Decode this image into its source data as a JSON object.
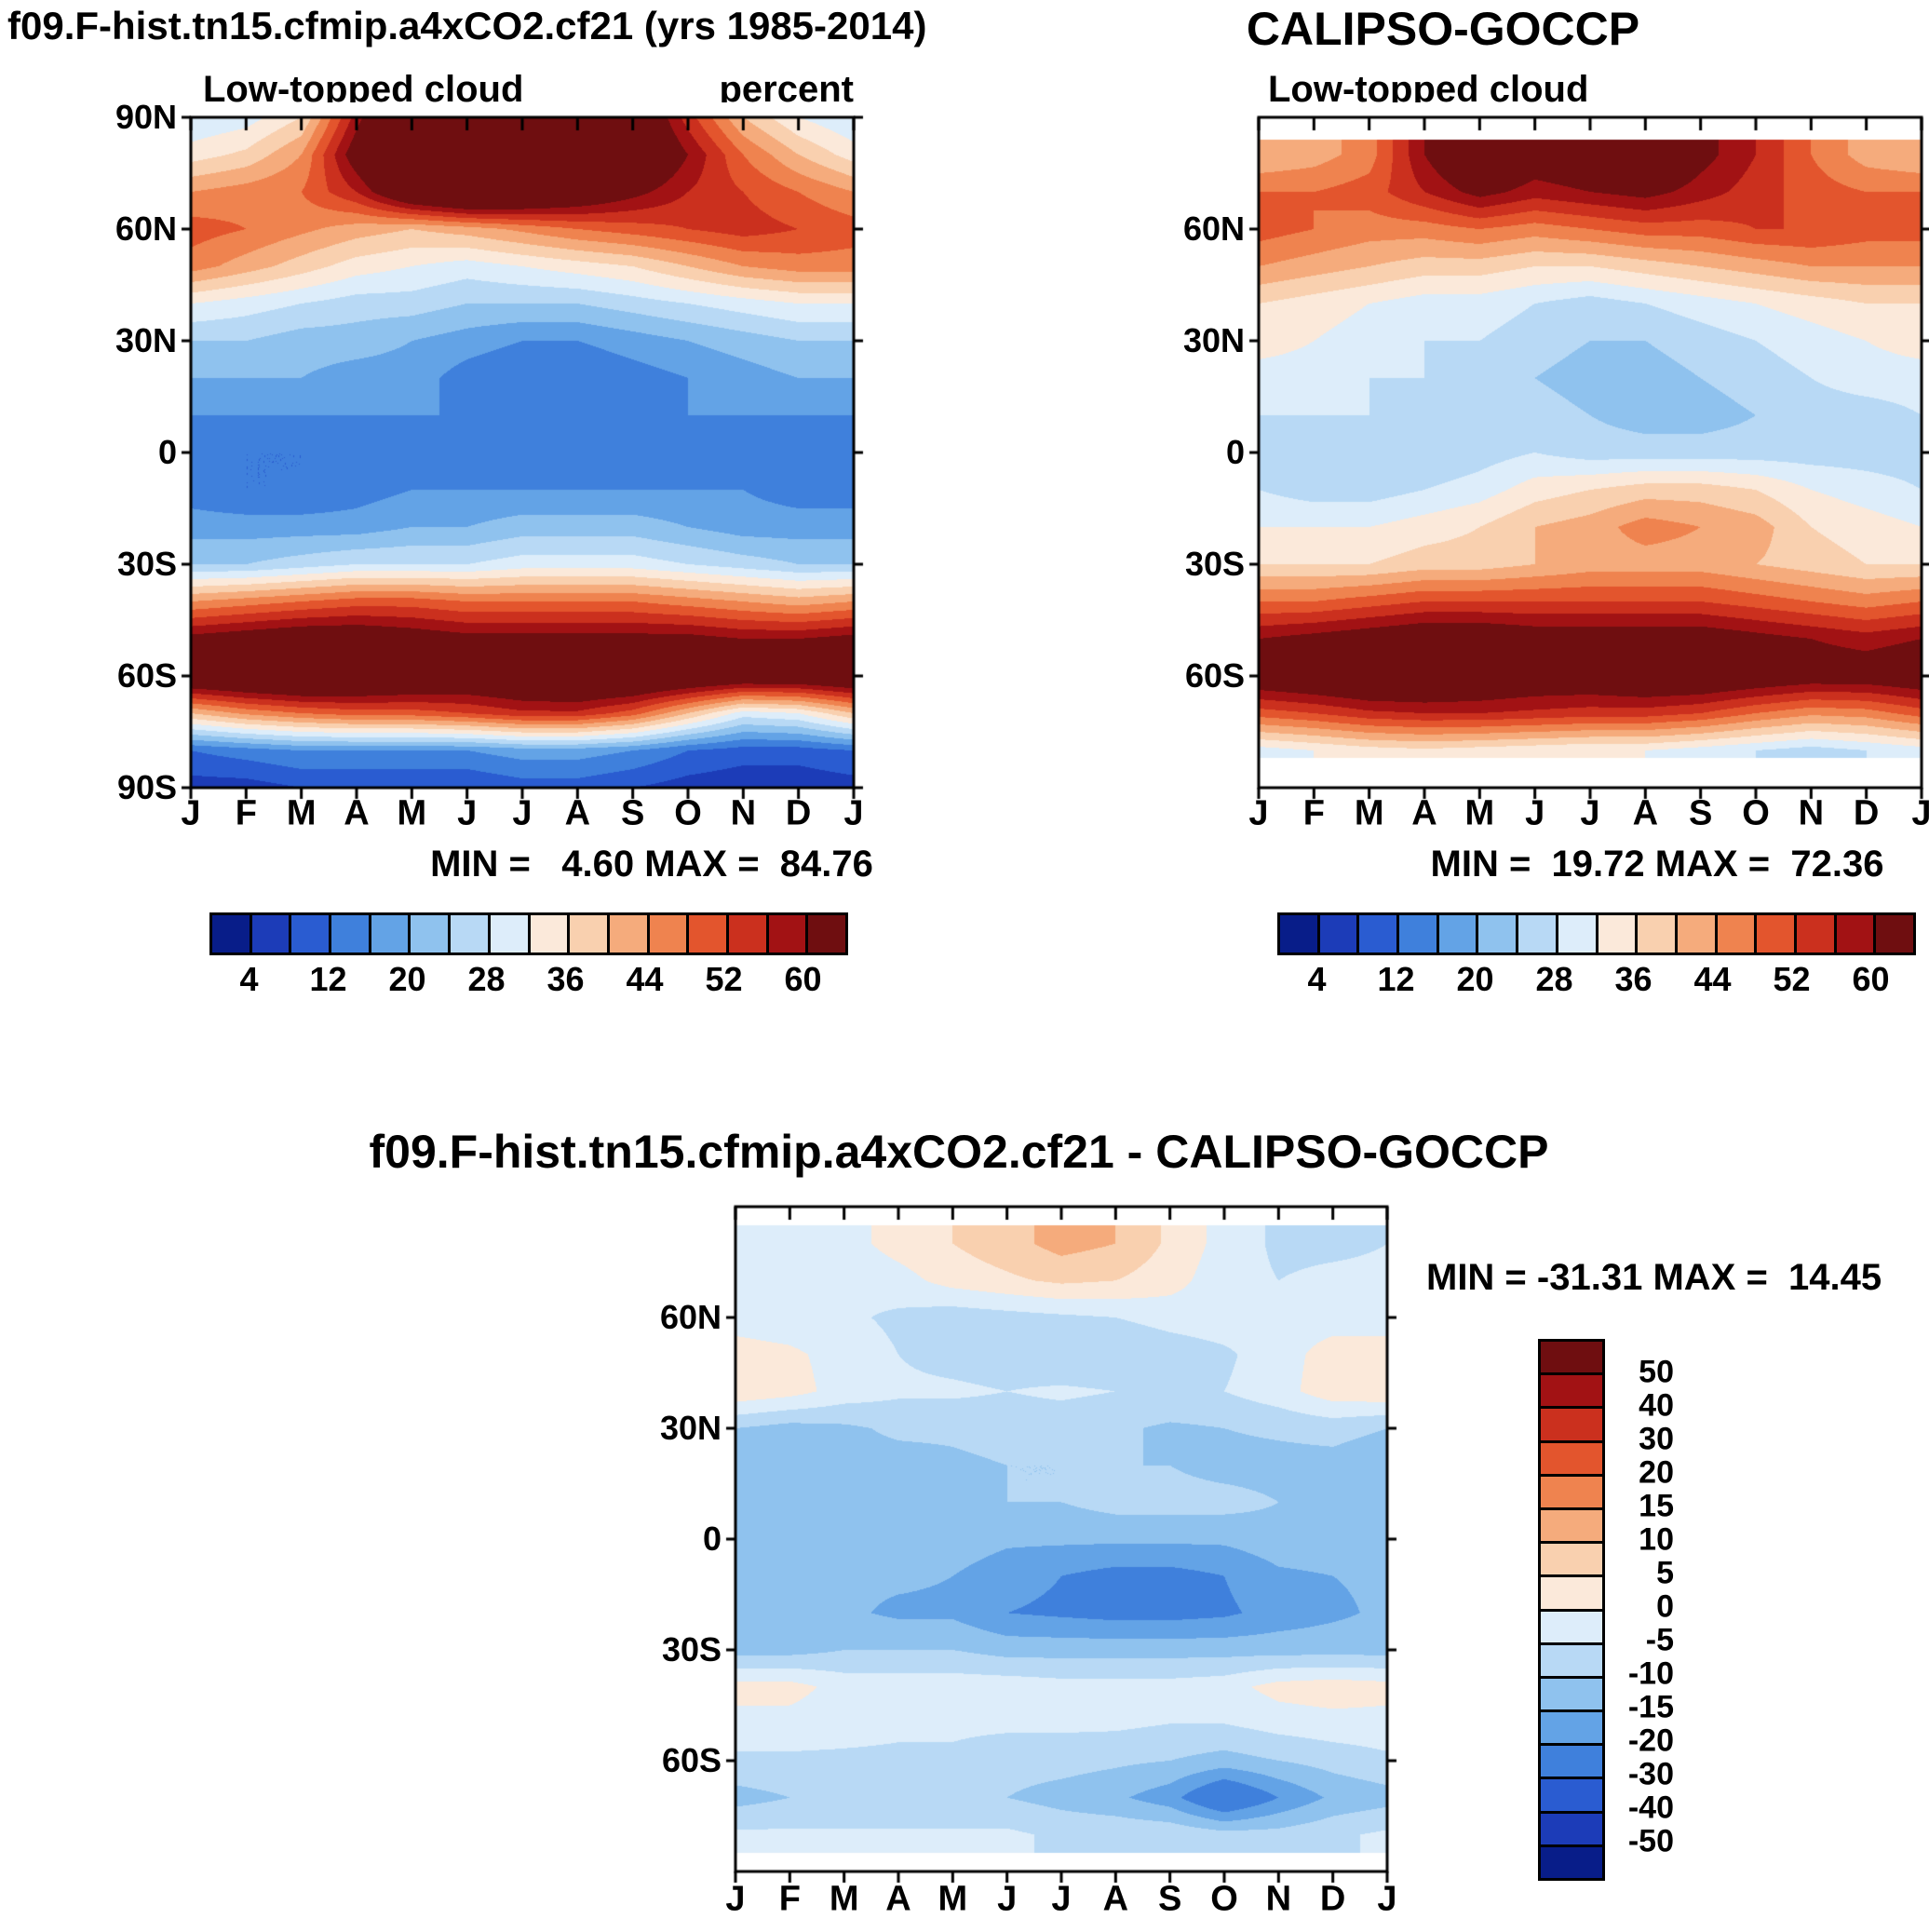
{
  "page": {
    "background": "#ffffff"
  },
  "palette": [
    "#081d89",
    "#1c3cb8",
    "#2a5cd1",
    "#3f80dc",
    "#63a3e6",
    "#8fc2ee",
    "#b8d9f5",
    "#ddedfa",
    "#fbe9da",
    "#f9d0af",
    "#f5ab7c",
    "#ef834f",
    "#e3552d",
    "#cb301e",
    "#a21214",
    "#6f0e10"
  ],
  "chart_data": [
    {
      "type": "heatmap",
      "id": "model",
      "title": "f09.F-hist.tn15.cfmip.a4xCO2.cf21 (yrs 1985-2014)",
      "subtitle_left": "Low-topped cloud",
      "subtitle_right": "percent",
      "stats": "MIN =   4.60 MAX =  84.76",
      "min": 4.6,
      "max": 84.76,
      "x_axis": "month",
      "y_axis": "latitude",
      "x_tick_labels": [
        "J",
        "F",
        "M",
        "A",
        "M",
        "J",
        "J",
        "A",
        "S",
        "O",
        "N",
        "D",
        "J"
      ],
      "y_tick_labels": [
        {
          "label": "90N",
          "lat": 90
        },
        {
          "label": "60N",
          "lat": 60
        },
        {
          "label": "30N",
          "lat": 30
        },
        {
          "label": "0",
          "lat": 0
        },
        {
          "label": "30S",
          "lat": -30
        },
        {
          "label": "60S",
          "lat": -60
        },
        {
          "label": "90S",
          "lat": -90
        }
      ],
      "levels": [
        4,
        8,
        12,
        16,
        20,
        24,
        28,
        32,
        36,
        40,
        44,
        48,
        52,
        56,
        60
      ],
      "colorbar_tick_labels": [
        "4",
        "12",
        "20",
        "28",
        "36",
        "44",
        "52",
        "60"
      ],
      "data_lat_top": 90,
      "data_lat_bottom": -90,
      "lats": [
        90,
        80,
        70,
        60,
        50,
        40,
        30,
        20,
        10,
        0,
        -10,
        -20,
        -30,
        -40,
        -50,
        -60,
        -70,
        -80,
        -90
      ],
      "values": [
        [
          28,
          30,
          36,
          58,
          76,
          82,
          84,
          80,
          70,
          54,
          40,
          32,
          28
        ],
        [
          34,
          37,
          44,
          64,
          80,
          84,
          84,
          80,
          72,
          60,
          48,
          40,
          34
        ],
        [
          44,
          46,
          48,
          56,
          70,
          76,
          73,
          68,
          62,
          56,
          52,
          48,
          44
        ],
        [
          50,
          48,
          45,
          42,
          40,
          42,
          45,
          48,
          50,
          52,
          54,
          52,
          50
        ],
        [
          46,
          42,
          38,
          34,
          32,
          30,
          32,
          34,
          36,
          40,
          44,
          46,
          46
        ],
        [
          32,
          30,
          28,
          26,
          26,
          24,
          24,
          24,
          26,
          28,
          30,
          32,
          32
        ],
        [
          24,
          24,
          22,
          22,
          20,
          18,
          16,
          16,
          18,
          20,
          22,
          24,
          24
        ],
        [
          20,
          20,
          20,
          18,
          18,
          14,
          12,
          12,
          14,
          16,
          18,
          20,
          20
        ],
        [
          16,
          16,
          16,
          16,
          16,
          16,
          14,
          14,
          14,
          16,
          16,
          16,
          16
        ],
        [
          14,
          12,
          12,
          12,
          14,
          14,
          12,
          12,
          12,
          12,
          14,
          14,
          14
        ],
        [
          14,
          12,
          12,
          14,
          16,
          16,
          16,
          16,
          16,
          16,
          16,
          14,
          14
        ],
        [
          18,
          18,
          18,
          18,
          20,
          20,
          22,
          22,
          22,
          20,
          18,
          18,
          18
        ],
        [
          24,
          24,
          26,
          28,
          28,
          28,
          30,
          30,
          30,
          28,
          26,
          24,
          24
        ],
        [
          44,
          46,
          48,
          50,
          50,
          48,
          48,
          48,
          48,
          46,
          44,
          42,
          44
        ],
        [
          62,
          64,
          66,
          66,
          64,
          62,
          62,
          62,
          62,
          62,
          60,
          60,
          62
        ],
        [
          70,
          72,
          74,
          72,
          70,
          68,
          70,
          72,
          72,
          70,
          68,
          68,
          70
        ],
        [
          40,
          45,
          48,
          50,
          50,
          52,
          55,
          55,
          50,
          40,
          30,
          32,
          40
        ],
        [
          12,
          14,
          16,
          16,
          16,
          16,
          18,
          18,
          16,
          12,
          10,
          10,
          12
        ],
        [
          6,
          6,
          8,
          8,
          8,
          8,
          10,
          10,
          8,
          6,
          5,
          5,
          6
        ]
      ]
    },
    {
      "type": "heatmap",
      "id": "obs",
      "title": "CALIPSO-GOCCP",
      "subtitle_left": "Low-topped cloud",
      "subtitle_right": "",
      "stats": "MIN =  19.72 MAX =  72.36",
      "min": 19.72,
      "max": 72.36,
      "x_axis": "month",
      "y_axis": "latitude",
      "x_tick_labels": [
        "J",
        "F",
        "M",
        "A",
        "M",
        "J",
        "J",
        "A",
        "S",
        "O",
        "N",
        "D",
        "J"
      ],
      "y_tick_labels": [
        {
          "label": "60N",
          "lat": 60
        },
        {
          "label": "30N",
          "lat": 30
        },
        {
          "label": "0",
          "lat": 0
        },
        {
          "label": "30S",
          "lat": -30
        },
        {
          "label": "60S",
          "lat": -60
        }
      ],
      "levels": [
        4,
        8,
        12,
        16,
        20,
        24,
        28,
        32,
        36,
        40,
        44,
        48,
        52,
        56,
        60
      ],
      "colorbar_tick_labels": [
        "4",
        "12",
        "20",
        "28",
        "36",
        "44",
        "52",
        "60"
      ],
      "data_lat_top": 84,
      "data_lat_bottom": -82,
      "lats": [
        80,
        70,
        60,
        50,
        40,
        30,
        20,
        10,
        0,
        -10,
        -20,
        -30,
        -40,
        -50,
        -60,
        -70,
        -80
      ],
      "values": [
        [
          40,
          42,
          46,
          60,
          70,
          64,
          66,
          70,
          62,
          56,
          48,
          42,
          40
        ],
        [
          48,
          48,
          50,
          56,
          62,
          58,
          60,
          62,
          58,
          54,
          50,
          48,
          48
        ],
        [
          50,
          48,
          46,
          46,
          48,
          46,
          48,
          50,
          50,
          52,
          52,
          50,
          50
        ],
        [
          44,
          42,
          40,
          38,
          38,
          36,
          36,
          38,
          40,
          42,
          44,
          44,
          44
        ],
        [
          36,
          34,
          32,
          30,
          30,
          28,
          26,
          28,
          30,
          32,
          34,
          36,
          36
        ],
        [
          34,
          32,
          30,
          28,
          28,
          26,
          24,
          24,
          26,
          28,
          30,
          32,
          34
        ],
        [
          30,
          30,
          28,
          28,
          26,
          24,
          22,
          22,
          24,
          26,
          28,
          30,
          30
        ],
        [
          28,
          28,
          28,
          26,
          26,
          26,
          24,
          22,
          22,
          24,
          26,
          26,
          28
        ],
        [
          26,
          24,
          24,
          24,
          26,
          28,
          26,
          26,
          26,
          26,
          26,
          26,
          26
        ],
        [
          28,
          26,
          26,
          28,
          30,
          34,
          36,
          38,
          38,
          36,
          32,
          30,
          28
        ],
        [
          32,
          32,
          32,
          34,
          36,
          40,
          42,
          46,
          44,
          42,
          36,
          34,
          32
        ],
        [
          36,
          36,
          36,
          38,
          38,
          40,
          42,
          42,
          42,
          40,
          38,
          36,
          36
        ],
        [
          48,
          48,
          50,
          52,
          52,
          52,
          52,
          52,
          52,
          50,
          48,
          46,
          48
        ],
        [
          60,
          62,
          64,
          66,
          66,
          64,
          64,
          64,
          64,
          62,
          60,
          58,
          60
        ],
        [
          66,
          68,
          70,
          70,
          68,
          66,
          66,
          68,
          68,
          66,
          64,
          64,
          66
        ],
        [
          50,
          52,
          55,
          56,
          56,
          55,
          54,
          54,
          52,
          48,
          45,
          46,
          50
        ],
        [
          30,
          32,
          34,
          35,
          34,
          33,
          32,
          32,
          30,
          28,
          26,
          28,
          30
        ]
      ]
    },
    {
      "type": "heatmap",
      "id": "difference",
      "title": "f09.F-hist.tn15.cfmip.a4xCO2.cf21 - CALIPSO-GOCCP",
      "subtitle_left": "",
      "subtitle_right": "",
      "stats": "MIN = -31.31 MAX =  14.45",
      "min": -31.31,
      "max": 14.45,
      "x_axis": "month",
      "y_axis": "latitude",
      "x_tick_labels": [
        "J",
        "F",
        "M",
        "A",
        "M",
        "J",
        "J",
        "A",
        "S",
        "O",
        "N",
        "D",
        "J"
      ],
      "y_tick_labels": [
        {
          "label": "60N",
          "lat": 60
        },
        {
          "label": "30N",
          "lat": 30
        },
        {
          "label": "0",
          "lat": 0
        },
        {
          "label": "30S",
          "lat": -30
        },
        {
          "label": "60S",
          "lat": -60
        }
      ],
      "levels": [
        -50,
        -40,
        -30,
        -20,
        -15,
        -10,
        -5,
        0,
        5,
        10,
        15,
        20,
        30,
        40,
        50
      ],
      "colorbar_tick_labels": [
        "50",
        "40",
        "30",
        "20",
        "15",
        "10",
        "5",
        "0",
        "-5",
        "-10",
        "-15",
        "-20",
        "-30",
        "-40",
        "-50"
      ],
      "data_lat_top": 85,
      "data_lat_bottom": -85,
      "lats": [
        80,
        70,
        60,
        50,
        40,
        30,
        20,
        10,
        0,
        -10,
        -20,
        -30,
        -40,
        -50,
        -60,
        -70,
        -80
      ],
      "values": [
        [
          -5,
          -4,
          -2,
          2,
          5,
          8,
          12,
          10,
          4,
          -2,
          -6,
          -6,
          -5
        ],
        [
          -4,
          -4,
          -4,
          -2,
          2,
          4,
          6,
          5,
          2,
          -3,
          -5,
          -4,
          -4
        ],
        [
          -2,
          -3,
          -4,
          -6,
          -8,
          -7,
          -6,
          -5,
          -3,
          -2,
          -2,
          -2,
          -2
        ],
        [
          2,
          1,
          -2,
          -5,
          -7,
          -8,
          -10,
          -10,
          -8,
          -6,
          -2,
          2,
          2
        ],
        [
          4,
          2,
          -2,
          -4,
          -4,
          -5,
          -4,
          -5,
          -5,
          -5,
          -2,
          3,
          4
        ],
        [
          -10,
          -12,
          -11,
          -9,
          -9,
          -8,
          -8,
          -9,
          -11,
          -10,
          -9,
          -8,
          -10
        ],
        [
          -14,
          -14,
          -12,
          -12,
          -11,
          -10,
          -10,
          -10,
          -10,
          -12,
          -12,
          -12,
          -14
        ],
        [
          -10,
          -12,
          -12,
          -10,
          -10,
          -10,
          -10,
          -8,
          -8,
          -8,
          -10,
          -10,
          -10
        ],
        [
          -10,
          -10,
          -12,
          -12,
          -12,
          -14,
          -14,
          -14,
          -14,
          -14,
          -12,
          -12,
          -10
        ],
        [
          -14,
          -14,
          -14,
          -14,
          -15,
          -18,
          -20,
          -22,
          -22,
          -20,
          -16,
          -15,
          -14
        ],
        [
          -14,
          -14,
          -14,
          -16,
          -16,
          -20,
          -21,
          -22,
          -22,
          -21,
          -18,
          -16,
          -14
        ],
        [
          -12,
          -12,
          -10,
          -10,
          -10,
          -12,
          -12,
          -12,
          -12,
          -12,
          -12,
          -12,
          -12
        ],
        [
          2,
          2,
          -2,
          -2,
          -2,
          -2,
          -3,
          -3,
          -3,
          -2,
          2,
          3,
          2
        ],
        [
          -2,
          -2,
          -3,
          -4,
          -4,
          -4,
          -4,
          -4,
          -5,
          -5,
          -3,
          -2,
          -2
        ],
        [
          -6,
          -6,
          -6,
          -6,
          -6,
          -8,
          -8,
          -9,
          -10,
          -12,
          -10,
          -8,
          -6
        ],
        [
          -12,
          -10,
          -10,
          -10,
          -10,
          -10,
          -12,
          -14,
          -18,
          -28,
          -20,
          -14,
          -12
        ],
        [
          -4,
          -4,
          -4,
          -4,
          -4,
          -4,
          -6,
          -6,
          -6,
          -8,
          -8,
          -6,
          -4
        ]
      ]
    }
  ]
}
